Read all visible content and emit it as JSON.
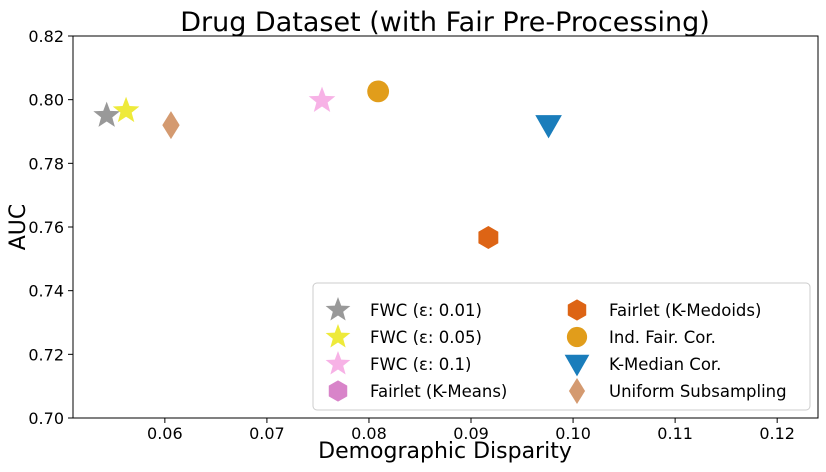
{
  "chart_data": {
    "type": "scatter",
    "title": "Drug Dataset (with Fair Pre-Processing)",
    "xlabel": "Demographic Disparity",
    "ylabel": "AUC",
    "xlim": [
      0.051,
      0.124
    ],
    "ylim": [
      0.7,
      0.82
    ],
    "xticks": [
      "0.06",
      "0.07",
      "0.08",
      "0.09",
      "0.10",
      "0.11",
      "0.12"
    ],
    "yticks": [
      "0.70",
      "0.72",
      "0.74",
      "0.76",
      "0.78",
      "0.80",
      "0.82"
    ],
    "grid": false,
    "legend_position": "lower-right",
    "series": [
      {
        "name": "FWC (ε: 0.01)",
        "marker": "star",
        "color": "#999999",
        "x": 0.0543,
        "y": 0.795
      },
      {
        "name": "FWC (ε: 0.05)",
        "marker": "star",
        "color": "#eeea3a",
        "x": 0.0562,
        "y": 0.7965
      },
      {
        "name": "FWC (ε: 0.1)",
        "marker": "star",
        "color": "#f7b2e6",
        "x": 0.0754,
        "y": 0.7997
      },
      {
        "name": "Fairlet (K-Means)",
        "marker": "hexagon",
        "color": "#d884c9",
        "x": null,
        "y": null
      },
      {
        "name": "Fairlet (K-Medoids)",
        "marker": "hexagon",
        "color": "#dd6415",
        "x": 0.0917,
        "y": 0.7567
      },
      {
        "name": "Ind. Fair. Cor.",
        "marker": "circle",
        "color": "#e19d1b",
        "x": 0.0809,
        "y": 0.8026
      },
      {
        "name": "K-Median Cor.",
        "marker": "triangle-down",
        "color": "#1a7dbb",
        "x": 0.0976,
        "y": 0.792
      },
      {
        "name": "Uniform Subsampling",
        "marker": "diamond",
        "color": "#d49a70",
        "x": 0.0606,
        "y": 0.792
      }
    ]
  }
}
